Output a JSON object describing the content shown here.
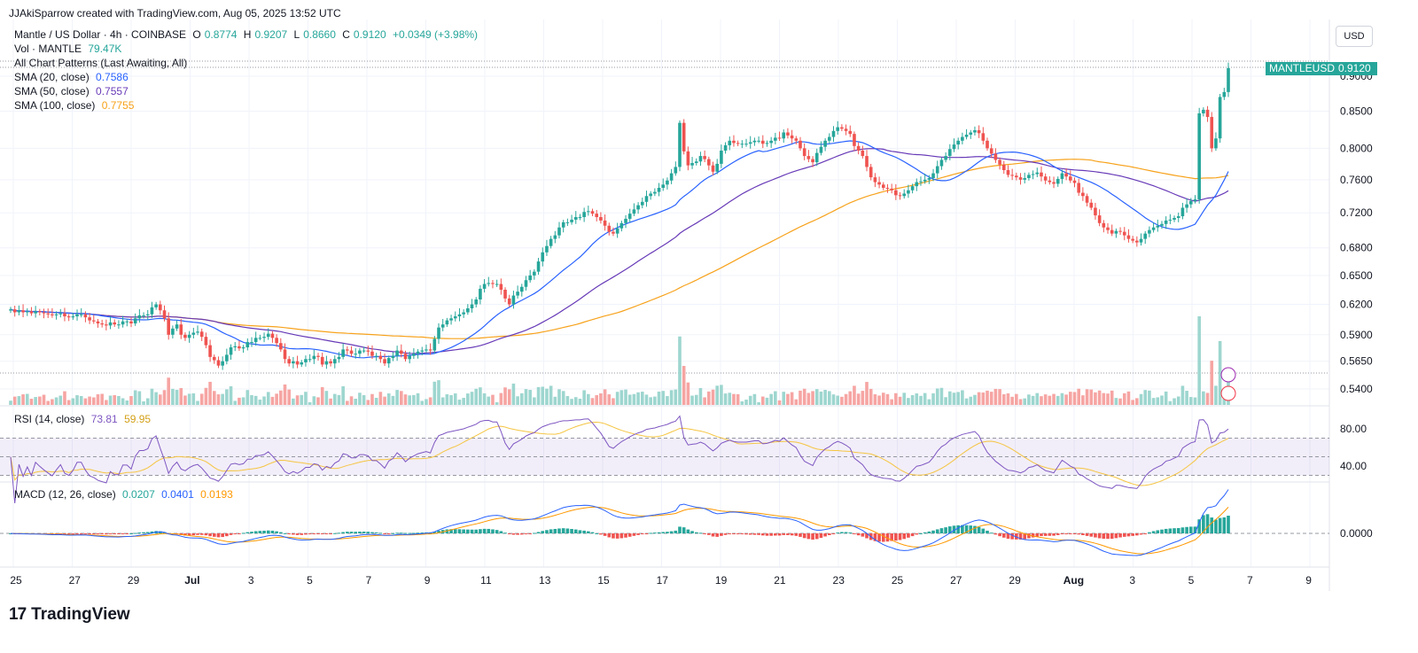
{
  "header": {
    "created_by": "JJAkiSparrow created with TradingView.com, Aug 05, 2025 13:52 UTC"
  },
  "legend": {
    "symbol": "Mantle / US Dollar · 4h · COINBASE",
    "o_label": "O",
    "o_value": "0.8774",
    "h_label": "H",
    "h_value": "0.9207",
    "l_label": "L",
    "l_value": "0.8660",
    "c_label": "C",
    "c_value": "0.9120",
    "change": "+0.0349 (+3.98%)",
    "vol_label": "Vol · MANTLE",
    "vol_value": "79.47K",
    "patterns": "All Chart Patterns (Last Awaiting, All)",
    "sma20_label": "SMA (20, close)",
    "sma20_value": "0.7586",
    "sma50_label": "SMA (50, close)",
    "sma50_value": "0.7557",
    "sma100_label": "SMA (100, close)",
    "sma100_value": "0.7755"
  },
  "rsi_legend": {
    "label": "RSI (14, close)",
    "value": "73.81",
    "ma_value": "59.95"
  },
  "macd_legend": {
    "label": "MACD (12, 26, close)",
    "hist": "0.0207",
    "macd": "0.0401",
    "signal": "0.0193"
  },
  "currency_button": "USD",
  "price_tag": {
    "symbol": "MANTLEUSD",
    "price": "0.9120"
  },
  "footer": {
    "brand": "TradingView",
    "mark": "17"
  },
  "colors": {
    "up": "#26a69a",
    "down": "#ef5350",
    "sma20": "#2962ff",
    "sma50": "#673ab7",
    "sma100": "#f7a21b",
    "rsi": "#7e57c2",
    "rsi_ma": "#f5c542",
    "macd": "#2962ff",
    "signal": "#ff9800"
  },
  "chart_data": {
    "type": "candlestick",
    "price_axis": {
      "scale": "log",
      "ticks": [
        "0.9000",
        "0.8500",
        "0.8000",
        "0.7600",
        "0.7200",
        "0.6800",
        "0.6500",
        "0.6200",
        "0.5900",
        "0.5650",
        "0.5400"
      ]
    },
    "rsi_axis": {
      "ticks": [
        "80.00",
        "40.00"
      ]
    },
    "macd_axis": {
      "ticks": [
        "0.0000"
      ]
    },
    "x_ticks": [
      "25",
      "27",
      "29",
      "Jul",
      "3",
      "5",
      "7",
      "9",
      "11",
      "13",
      "15",
      "17",
      "19",
      "21",
      "23",
      "25",
      "27",
      "29",
      "Aug",
      "3",
      "5",
      "7",
      "9"
    ],
    "closes": [
      0.615,
      0.612,
      0.614,
      0.612,
      0.613,
      0.611,
      0.613,
      0.612,
      0.611,
      0.61,
      0.609,
      0.61,
      0.611,
      0.608,
      0.607,
      0.608,
      0.61,
      0.61,
      0.607,
      0.604,
      0.603,
      0.601,
      0.6,
      0.599,
      0.602,
      0.6,
      0.6,
      0.603,
      0.603,
      0.601,
      0.606,
      0.609,
      0.609,
      0.61,
      0.617,
      0.62,
      0.614,
      0.606,
      0.59,
      0.596,
      0.6,
      0.59,
      0.587,
      0.59,
      0.592,
      0.593,
      0.588,
      0.58,
      0.569,
      0.566,
      0.561,
      0.565,
      0.571,
      0.578,
      0.579,
      0.577,
      0.578,
      0.583,
      0.583,
      0.587,
      0.587,
      0.588,
      0.591,
      0.587,
      0.582,
      0.576,
      0.567,
      0.563,
      0.565,
      0.562,
      0.564,
      0.567,
      0.567,
      0.57,
      0.569,
      0.562,
      0.565,
      0.563,
      0.567,
      0.569,
      0.576,
      0.575,
      0.572,
      0.572,
      0.575,
      0.575,
      0.574,
      0.57,
      0.57,
      0.567,
      0.563,
      0.568,
      0.57,
      0.575,
      0.572,
      0.567,
      0.57,
      0.572,
      0.574,
      0.575,
      0.576,
      0.575,
      0.586,
      0.597,
      0.6,
      0.604,
      0.606,
      0.608,
      0.61,
      0.612,
      0.616,
      0.62,
      0.625,
      0.636,
      0.641,
      0.642,
      0.641,
      0.641,
      0.635,
      0.626,
      0.62,
      0.629,
      0.633,
      0.638,
      0.645,
      0.65,
      0.654,
      0.665,
      0.675,
      0.682,
      0.69,
      0.694,
      0.703,
      0.709,
      0.709,
      0.712,
      0.715,
      0.715,
      0.721,
      0.722,
      0.719,
      0.715,
      0.711,
      0.705,
      0.698,
      0.696,
      0.702,
      0.708,
      0.713,
      0.719,
      0.724,
      0.729,
      0.733,
      0.74,
      0.743,
      0.745,
      0.75,
      0.754,
      0.759,
      0.768,
      0.776,
      0.834,
      0.796,
      0.778,
      0.781,
      0.783,
      0.79,
      0.786,
      0.778,
      0.77,
      0.78,
      0.797,
      0.804,
      0.81,
      0.807,
      0.806,
      0.806,
      0.806,
      0.808,
      0.81,
      0.81,
      0.806,
      0.807,
      0.81,
      0.814,
      0.813,
      0.821,
      0.817,
      0.813,
      0.81,
      0.8,
      0.79,
      0.786,
      0.782,
      0.794,
      0.802,
      0.81,
      0.815,
      0.823,
      0.828,
      0.826,
      0.823,
      0.819,
      0.803,
      0.797,
      0.79,
      0.776,
      0.763,
      0.757,
      0.754,
      0.75,
      0.749,
      0.747,
      0.741,
      0.74,
      0.743,
      0.747,
      0.752,
      0.757,
      0.758,
      0.76,
      0.762,
      0.768,
      0.777,
      0.785,
      0.79,
      0.799,
      0.805,
      0.81,
      0.815,
      0.818,
      0.821,
      0.824,
      0.82,
      0.81,
      0.8,
      0.793,
      0.785,
      0.779,
      0.772,
      0.766,
      0.765,
      0.763,
      0.76,
      0.762,
      0.766,
      0.767,
      0.769,
      0.764,
      0.759,
      0.757,
      0.755,
      0.761,
      0.768,
      0.764,
      0.759,
      0.756,
      0.744,
      0.74,
      0.732,
      0.726,
      0.717,
      0.708,
      0.703,
      0.7,
      0.696,
      0.699,
      0.698,
      0.694,
      0.69,
      0.688,
      0.686,
      0.69,
      0.696,
      0.7,
      0.703,
      0.705,
      0.707,
      0.711,
      0.712,
      0.714,
      0.716,
      0.726,
      0.73,
      0.734,
      0.736,
      0.847,
      0.852,
      0.842,
      0.8,
      0.813,
      0.87,
      0.877,
      0.912
    ]
  }
}
